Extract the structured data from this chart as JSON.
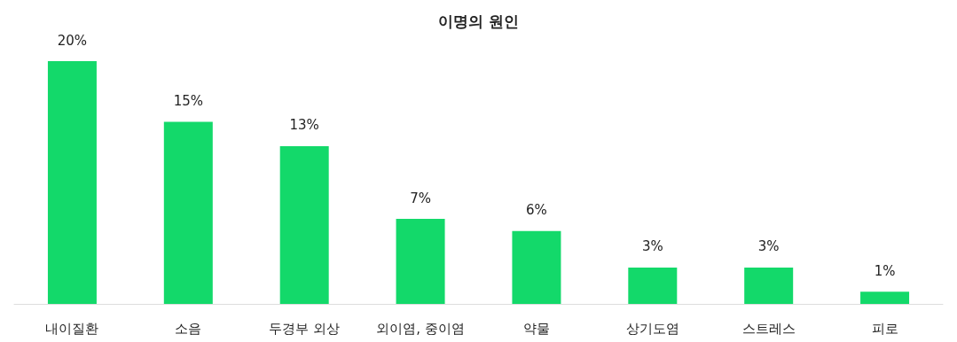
{
  "chart_data": {
    "type": "bar",
    "title": "이명의 원인",
    "categories": [
      "내이질환",
      "소음",
      "두경부 외상",
      "외이염, 중이염",
      "약물",
      "상기도염",
      "스트레스",
      "피로"
    ],
    "values": [
      20,
      15,
      13,
      7,
      6,
      3,
      3,
      1
    ],
    "value_labels": [
      "20%",
      "15%",
      "13%",
      "7%",
      "6%",
      "3%",
      "3%",
      "1%"
    ],
    "color": "#13d96a"
  }
}
